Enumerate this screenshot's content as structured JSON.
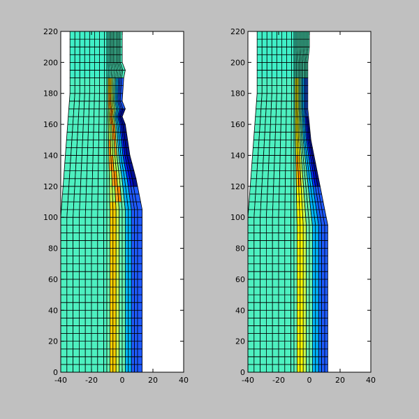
{
  "figure": {
    "background": "#c0c0c0",
    "axes_background": "#ffffff",
    "mesh_line_color": "#000000"
  },
  "chart_data": [
    {
      "type": "heatmap",
      "subtype": "deformed-mesh-contour",
      "title": "",
      "xlabel": "",
      "ylabel": "",
      "xlim": [
        -40,
        40
      ],
      "ylim": [
        0,
        220
      ],
      "x_ticks": [
        -40,
        -20,
        0,
        20,
        40
      ],
      "y_ticks": [
        0,
        20,
        40,
        60,
        80,
        100,
        120,
        140,
        160,
        180,
        200,
        220
      ],
      "grid": false,
      "mesh": {
        "x_start": -40,
        "x_spacing": 4,
        "y_spacing": 5,
        "y_max": 220,
        "rows_full_width_below_y": 105,
        "right_boundary": [
          [
            0,
            13
          ],
          [
            105,
            13
          ],
          [
            110,
            12
          ],
          [
            125,
            9
          ],
          [
            140,
            5
          ],
          [
            160,
            2
          ],
          [
            165,
            0
          ],
          [
            170,
            2
          ],
          [
            175,
            0
          ],
          [
            190,
            1
          ],
          [
            195,
            2
          ],
          [
            200,
            0
          ],
          [
            220,
            0
          ]
        ],
        "band_edges_x": [
          -10,
          -8,
          -6,
          -4,
          -2,
          0,
          2,
          4,
          6,
          8,
          10,
          13
        ],
        "band_colors": [
          "#66f0b0",
          "#ffd000",
          "#ffd000",
          "#c8ff50",
          "#66f0b0",
          "#66f0b0",
          "#00b8ff",
          "#00b8ff",
          "#1f5bff",
          "#1f5bff",
          "#1f5bff"
        ],
        "background_color": "#4ef0c0",
        "top_region_color": "#40f0c8",
        "stripe_colors_by_height": [
          {
            "y": [
              110,
              180
            ],
            "colors": [
              "#a0ff60",
              "#ffb020",
              "#ff9000",
              "#c8ff50"
            ]
          },
          {
            "y": [
              120,
              170
            ],
            "colors": [
              "#0030ff",
              "#0010d0",
              "#001090"
            ]
          }
        ]
      }
    },
    {
      "type": "heatmap",
      "subtype": "deformed-mesh-contour",
      "title": "",
      "xlabel": "",
      "ylabel": "",
      "xlim": [
        -40,
        40
      ],
      "ylim": [
        0,
        220
      ],
      "x_ticks": [
        -40,
        -20,
        0,
        20,
        40
      ],
      "y_ticks": [
        0,
        20,
        40,
        60,
        80,
        100,
        120,
        140,
        160,
        180,
        200,
        220
      ],
      "grid": false,
      "mesh": {
        "x_start": -40,
        "x_spacing": 4,
        "y_spacing": 5,
        "y_max": 220,
        "rows_full_width_below_y": 105,
        "right_boundary": [
          [
            0,
            12
          ],
          [
            95,
            12
          ],
          [
            100,
            11
          ],
          [
            110,
            9
          ],
          [
            120,
            7
          ],
          [
            130,
            5
          ],
          [
            140,
            3
          ],
          [
            150,
            1
          ],
          [
            160,
            0
          ],
          [
            170,
            -1
          ],
          [
            200,
            -1
          ],
          [
            210,
            0
          ],
          [
            220,
            0
          ]
        ],
        "band_edges_x": [
          -10,
          -8,
          -6,
          -4,
          -2,
          0,
          2,
          4,
          6,
          8,
          10,
          12
        ],
        "band_colors": [
          "#66f0b0",
          "#ffff00",
          "#ffff00",
          "#c8ff50",
          "#66f0b0",
          "#66f0b0",
          "#00b8ff",
          "#00b8ff",
          "#0a6cff",
          "#1f5bff",
          "#1f5bff"
        ],
        "background_color": "#4ef0c0",
        "top_region_color": "#40f0c8",
        "stripe_colors_by_height": [
          {
            "y": [
              120,
              140
            ],
            "colors": [
              "#ffd000",
              "#ff9000"
            ]
          },
          {
            "y": [
              120,
              165
            ],
            "colors": [
              "#0030ff",
              "#0010d0",
              "#001090"
            ]
          }
        ]
      }
    }
  ]
}
